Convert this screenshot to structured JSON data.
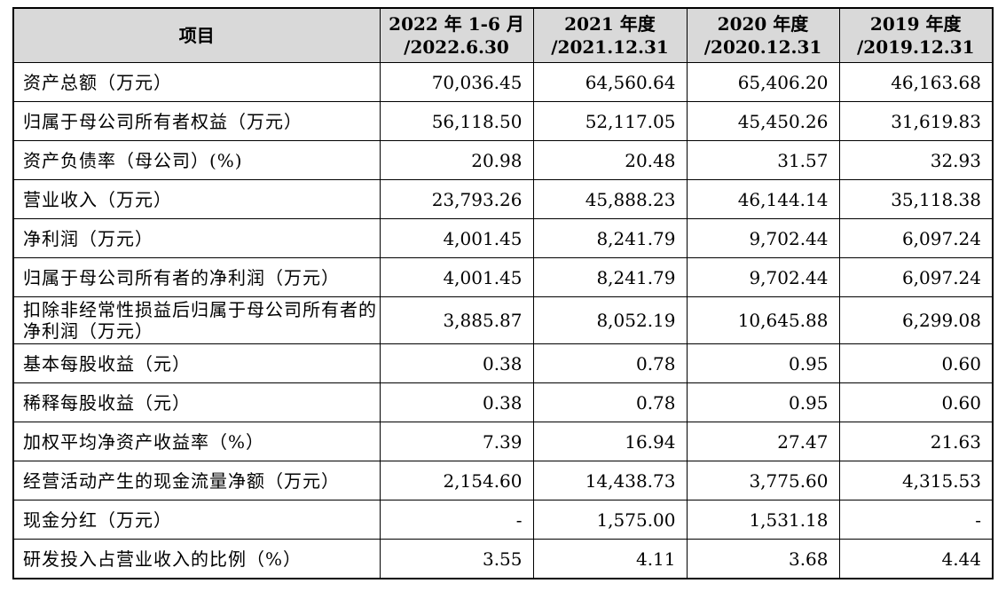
{
  "header": {
    "item": "项目",
    "columns": [
      {
        "line1": "2022 年 1-6 月",
        "line2": "/2022.6.30"
      },
      {
        "line1": "2021 年度",
        "line2": "/2021.12.31"
      },
      {
        "line1": "2020 年度",
        "line2": "/2020.12.31"
      },
      {
        "line1": "2019 年度",
        "line2": "/2019.12.31"
      }
    ]
  },
  "rows": [
    {
      "label": "资产总额（万元）",
      "values": [
        "70,036.45",
        "64,560.64",
        "65,406.20",
        "46,163.68"
      ]
    },
    {
      "label": "归属于母公司所有者权益（万元）",
      "values": [
        "56,118.50",
        "52,117.05",
        "45,450.26",
        "31,619.83"
      ]
    },
    {
      "label": "资产负债率（母公司）(%)",
      "values": [
        "20.98",
        "20.48",
        "31.57",
        "32.93"
      ]
    },
    {
      "label": "营业收入（万元）",
      "values": [
        "23,793.26",
        "45,888.23",
        "46,144.14",
        "35,118.38"
      ]
    },
    {
      "label": "净利润（万元）",
      "values": [
        "4,001.45",
        "8,241.79",
        "9,702.44",
        "6,097.24"
      ]
    },
    {
      "label": "归属于母公司所有者的净利润（万元）",
      "values": [
        "4,001.45",
        "8,241.79",
        "9,702.44",
        "6,097.24"
      ]
    },
    {
      "label": "扣除非经常性损益后归属于母公司所有者的净利润（万元）",
      "values": [
        "3,885.87",
        "8,052.19",
        "10,645.88",
        "6,299.08"
      ]
    },
    {
      "label": "基本每股收益（元）",
      "values": [
        "0.38",
        "0.78",
        "0.95",
        "0.60"
      ]
    },
    {
      "label": "稀释每股收益（元）",
      "values": [
        "0.38",
        "0.78",
        "0.95",
        "0.60"
      ]
    },
    {
      "label": "加权平均净资产收益率（%）",
      "values": [
        "7.39",
        "16.94",
        "27.47",
        "21.63"
      ]
    },
    {
      "label": "经营活动产生的现金流量净额（万元）",
      "values": [
        "2,154.60",
        "14,438.73",
        "3,775.60",
        "4,315.53"
      ]
    },
    {
      "label": "现金分红（万元）",
      "values": [
        "-",
        "1,575.00",
        "1,531.18",
        "-"
      ]
    },
    {
      "label": "研发投入占营业收入的比例（%）",
      "values": [
        "3.55",
        "4.11",
        "3.68",
        "4.44"
      ]
    }
  ]
}
